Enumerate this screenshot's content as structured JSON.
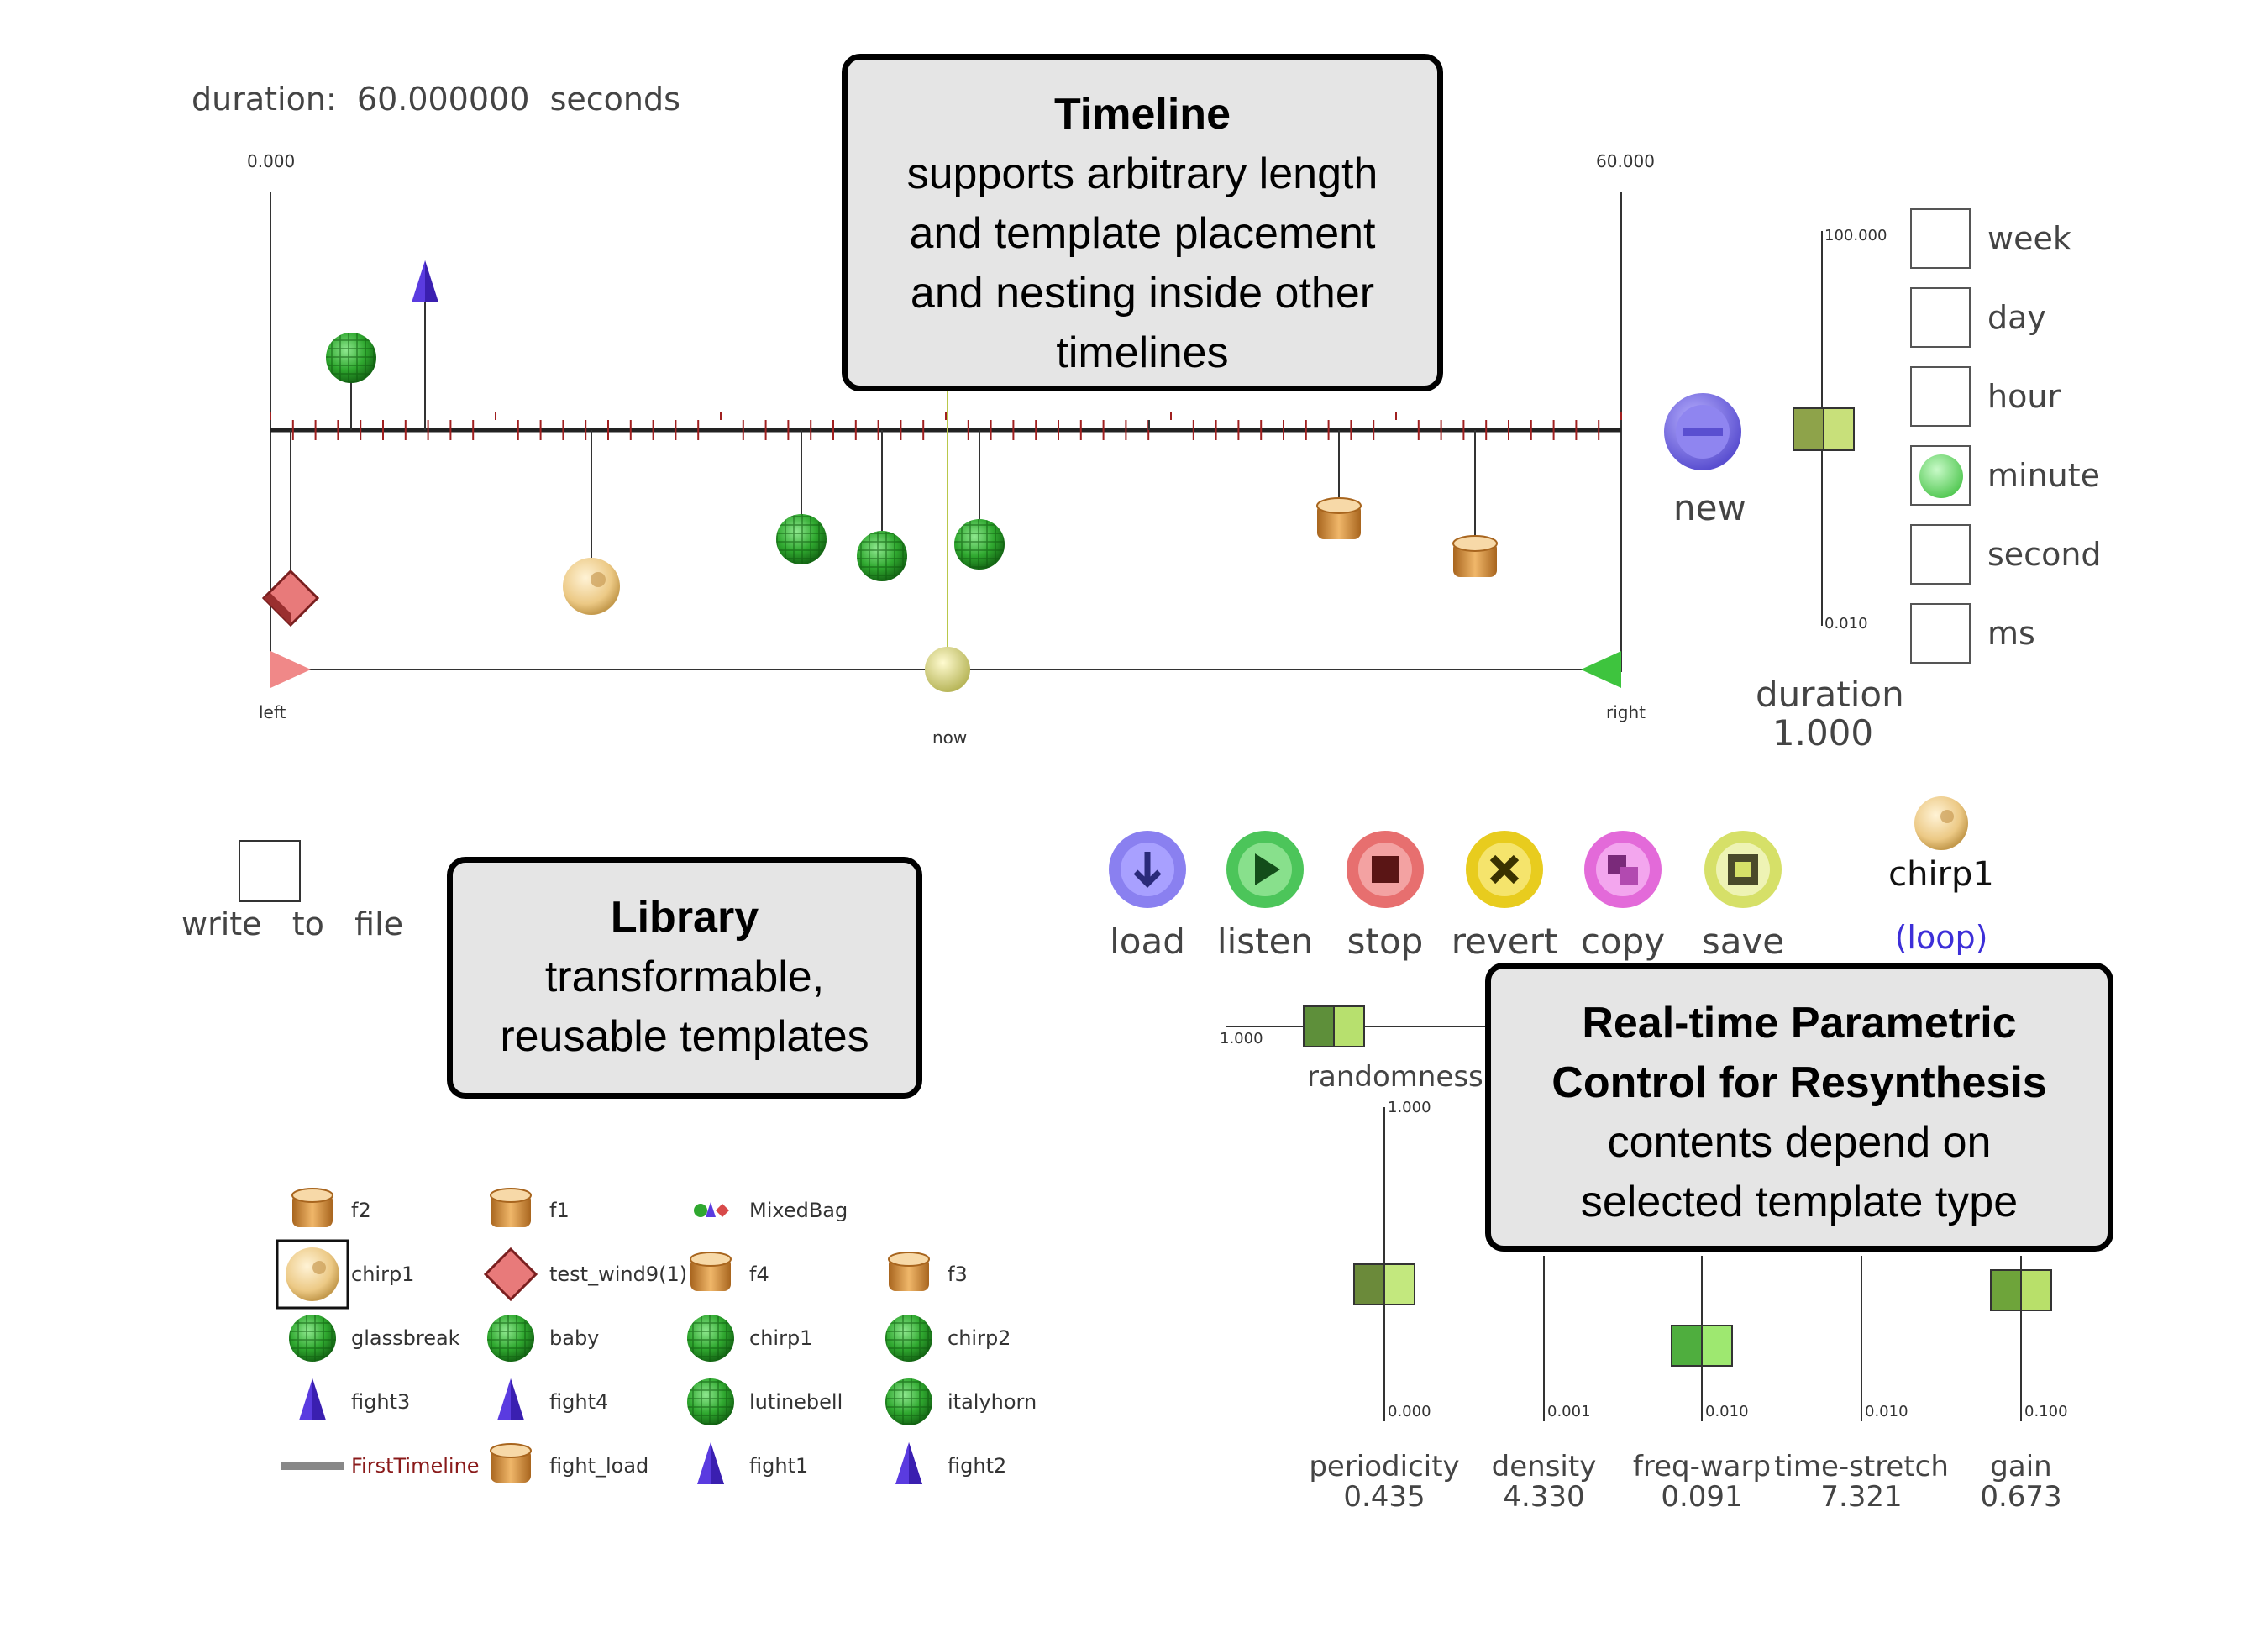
{
  "timeline": {
    "duration_prefix": "duration:",
    "duration_value": "60.000000",
    "duration_unit": "seconds",
    "start_label": "0.000",
    "end_label": "60.000",
    "left_label": "left",
    "right_label": "right",
    "now_label": "now"
  },
  "new_button": {
    "label": "new"
  },
  "duration_control": {
    "max_label": "100.000",
    "min_label": "0.010",
    "title": "duration",
    "value": "1.000",
    "units": [
      {
        "label": "week",
        "selected": false
      },
      {
        "label": "day",
        "selected": false
      },
      {
        "label": "hour",
        "selected": false
      },
      {
        "label": "minute",
        "selected": true
      },
      {
        "label": "second",
        "selected": false
      },
      {
        "label": "ms",
        "selected": false
      }
    ]
  },
  "callouts": {
    "timeline": {
      "title": "Timeline",
      "body": [
        "supports arbitrary length",
        "and template placement",
        "and nesting inside other",
        "timelines"
      ]
    },
    "library": {
      "title": "Library",
      "body": [
        "transformable,",
        "reusable templates"
      ]
    },
    "realtime": {
      "title": [
        "Real-time Parametric",
        "Control for Resynthesis"
      ],
      "body": [
        "contents depend on",
        "selected template type"
      ]
    }
  },
  "write_to_file": {
    "label": "write   to   file"
  },
  "toolbar": {
    "buttons": [
      {
        "label": "load",
        "icon": "download-icon",
        "color": "#7b6fe0"
      },
      {
        "label": "listen",
        "icon": "play-icon",
        "color": "#3fbf50"
      },
      {
        "label": "stop",
        "icon": "stop-icon",
        "color": "#e76f6f"
      },
      {
        "label": "revert",
        "icon": "x-icon",
        "color": "#e8d028"
      },
      {
        "label": "copy",
        "icon": "copy-icon",
        "color": "#e46de0"
      },
      {
        "label": "save",
        "icon": "save-icon",
        "color": "#d6e06c"
      }
    ]
  },
  "selected_template": {
    "name": "chirp1",
    "mode": "(loop)"
  },
  "randomness": {
    "label": "randomness",
    "max_label": "1.000"
  },
  "sliders": [
    {
      "label": "periodicity",
      "value": "0.435",
      "top_label": "1.000",
      "bottom_label": "0.000"
    },
    {
      "label": "density",
      "value": "4.330",
      "top_label": "",
      "bottom_label": "0.001"
    },
    {
      "label": "freq-warp",
      "value": "0.091",
      "top_label": "",
      "bottom_label": "0.010"
    },
    {
      "label": "time-stretch",
      "value": "7.321",
      "top_label": "",
      "bottom_label": "0.010"
    },
    {
      "label": "gain",
      "value": "0.673",
      "top_label": "",
      "bottom_label": "0.100"
    }
  ],
  "library": {
    "items": [
      {
        "label": "f2",
        "icon": "drum-icon"
      },
      {
        "label": "f1",
        "icon": "drum-icon"
      },
      {
        "label": "MixedBag",
        "icon": "mixed-bag-icon"
      },
      {
        "label": "chirp1",
        "icon": "donut-icon",
        "selected": true
      },
      {
        "label": "test_wind9(1)",
        "icon": "cube-icon"
      },
      {
        "label": "f4",
        "icon": "drum-icon"
      },
      {
        "label": "f3",
        "icon": "drum-icon"
      },
      {
        "label": "glassbreak",
        "icon": "globe-icon"
      },
      {
        "label": "baby",
        "icon": "globe-icon"
      },
      {
        "label": "chirp1",
        "icon": "globe-icon"
      },
      {
        "label": "chirp2",
        "icon": "globe-icon"
      },
      {
        "label": "fight3",
        "icon": "cone-icon"
      },
      {
        "label": "fight4",
        "icon": "cone-icon"
      },
      {
        "label": "lutinebell",
        "icon": "globe-icon"
      },
      {
        "label": "italyhorn",
        "icon": "globe-icon"
      },
      {
        "label": "FirstTimeline",
        "icon": "timeline-bar-icon"
      },
      {
        "label": "fight_load",
        "icon": "drum-icon"
      },
      {
        "label": "fight1",
        "icon": "cone-icon"
      },
      {
        "label": "fight2",
        "icon": "cone-icon"
      }
    ]
  }
}
